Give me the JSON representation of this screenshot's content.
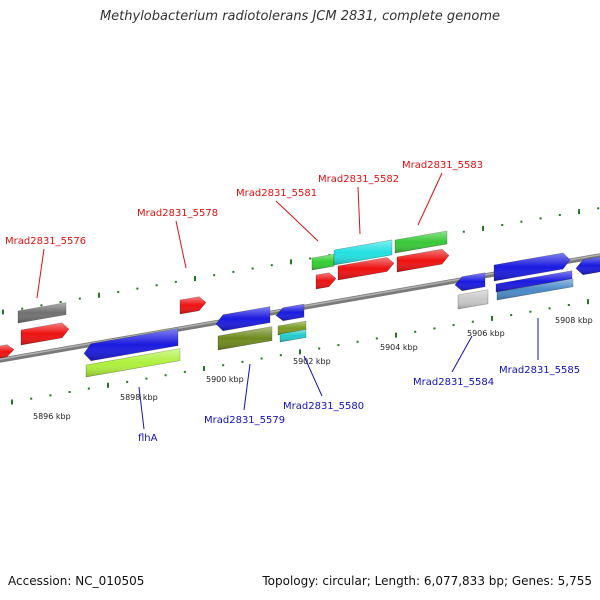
{
  "title": "Methylobacterium radiotolerans JCM 2831, complete genome",
  "footer": {
    "accession": "Accession: NC_010505",
    "summary": "Topology: circular; Length: 6,077,833 bp; Genes: 5,755"
  },
  "colors": {
    "top_label": "#dd1111",
    "bottom_label": "#1111bb",
    "axis": "#808080",
    "tick": "#1f7a1f"
  },
  "kbp_ticks": [
    "5896 kbp",
    "5898 kbp",
    "5900 kbp",
    "5902 kbp",
    "5904 kbp",
    "5906 kbp",
    "5908 kbp"
  ],
  "top_gene_labels": [
    "Mrad2831_5576",
    "Mrad2831_5578",
    "Mrad2831_5581",
    "Mrad2831_5582",
    "Mrad2831_5583"
  ],
  "bottom_gene_labels": [
    "flhA",
    "Mrad2831_5579",
    "Mrad2831_5580",
    "Mrad2831_5584",
    "Mrad2831_5585"
  ]
}
